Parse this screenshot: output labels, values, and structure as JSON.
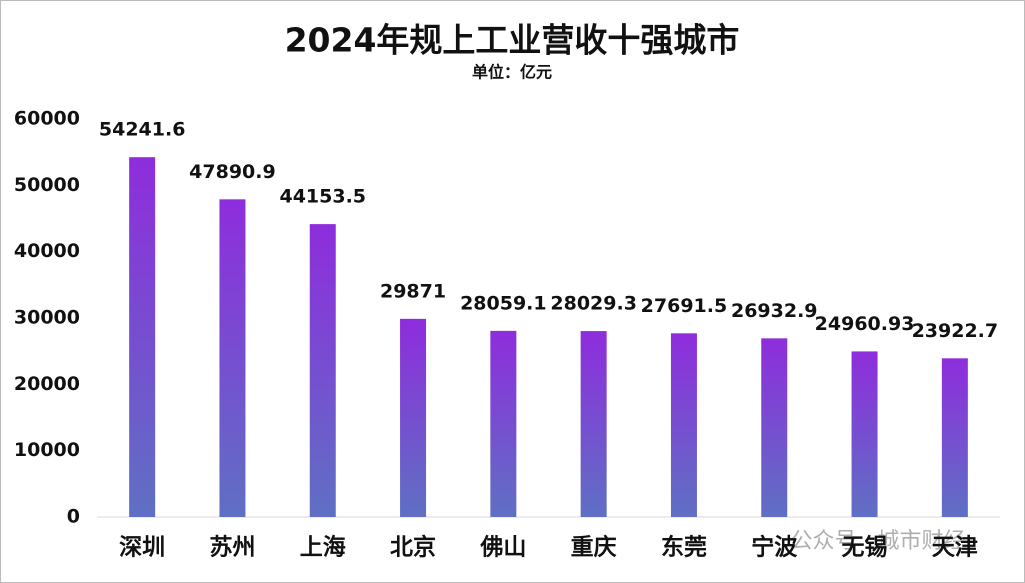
{
  "chart_data": {
    "type": "bar",
    "title": "2024年规上工业营收十强城市",
    "subtitle": "单位：亿元",
    "categories": [
      "深圳",
      "苏州",
      "上海",
      "北京",
      "佛山",
      "重庆",
      "东莞",
      "宁波",
      "无锡",
      "天津"
    ],
    "values": [
      54241.6,
      47890.9,
      44153.5,
      29871,
      28059.1,
      28029.3,
      27691.5,
      26932.9,
      24960.93,
      23922.7
    ],
    "gradient": [
      "#8e2ddc",
      "#5f70c4"
    ],
    "ylim": [
      0,
      60000
    ],
    "yticks": [
      0,
      10000,
      20000,
      30000,
      40000,
      50000,
      60000
    ],
    "grid": false,
    "watermark": "公众号 · 城市财经"
  }
}
